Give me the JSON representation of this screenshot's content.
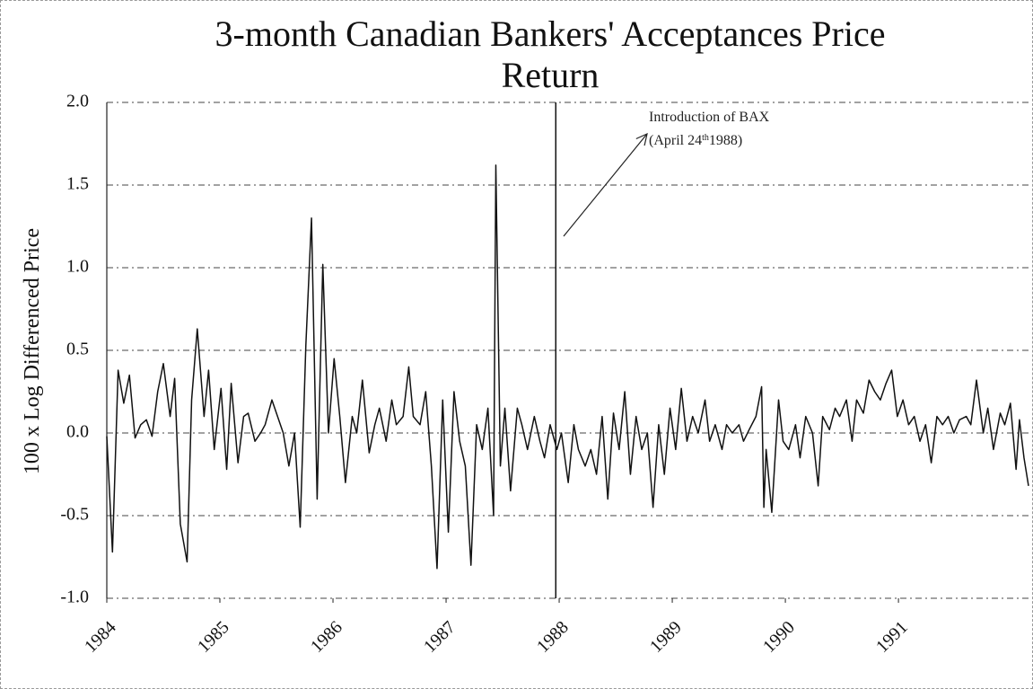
{
  "chart_data": {
    "type": "line",
    "title": "3-month Canadian Bankers' Acceptances Price Return",
    "y_label": "100 x Log Differenced Price",
    "xlim": [
      1984,
      1992.15
    ],
    "xticks": [
      1984,
      1985,
      1986,
      1987,
      1988,
      1989,
      1990,
      1991
    ],
    "ylim": [
      -1.0,
      2.0
    ],
    "yticks": [
      {
        "value": 2.0,
        "label": "2.0"
      },
      1.5,
      {
        "value": 1.0,
        "label": "1.0"
      },
      0.5,
      {
        "value": 0.0,
        "label": "0.0"
      },
      -0.5,
      {
        "value": -1.0,
        "label": "-1.0"
      }
    ],
    "grid": true,
    "annotation": {
      "text": "Introduction of BAX",
      "date_parts": [
        "(April 24",
        "th",
        "1988)"
      ],
      "x": 1987.97
    },
    "series": [
      {
        "name": "Price Return",
        "color": "#111111",
        "x": [
          1984.0,
          1984.05,
          1984.1,
          1984.15,
          1984.2,
          1984.25,
          1984.3,
          1984.35,
          1984.4,
          1984.45,
          1984.5,
          1984.56,
          1984.6,
          1984.65,
          1984.71,
          1984.75,
          1984.8,
          1984.86,
          1984.9,
          1984.95,
          1985.01,
          1985.06,
          1985.1,
          1985.16,
          1985.21,
          1985.25,
          1985.31,
          1985.36,
          1985.4,
          1985.46,
          1985.51,
          1985.56,
          1985.61,
          1985.66,
          1985.71,
          1985.76,
          1985.81,
          1985.86,
          1985.91,
          1985.96,
          1986.01,
          1986.06,
          1986.11,
          1986.17,
          1986.21,
          1986.26,
          1986.32,
          1986.37,
          1986.41,
          1986.47,
          1986.52,
          1986.56,
          1986.62,
          1986.67,
          1986.71,
          1986.77,
          1986.82,
          1986.87,
          1986.92,
          1986.97,
          1987.02,
          1987.07,
          1987.12,
          1987.17,
          1987.22,
          1987.27,
          1987.32,
          1987.37,
          1987.42,
          1987.44,
          1987.48,
          1987.52,
          1987.57,
          1987.63,
          1987.67,
          1987.72,
          1987.78,
          1987.83,
          1987.87,
          1987.92,
          1987.98,
          1988.02,
          1988.08,
          1988.13,
          1988.17,
          1988.23,
          1988.28,
          1988.33,
          1988.38,
          1988.43,
          1988.48,
          1988.53,
          1988.58,
          1988.63,
          1988.68,
          1988.73,
          1988.78,
          1988.83,
          1988.88,
          1988.93,
          1988.98,
          1989.03,
          1989.08,
          1989.13,
          1989.18,
          1989.23,
          1989.29,
          1989.33,
          1989.38,
          1989.44,
          1989.48,
          1989.53,
          1989.59,
          1989.63,
          1989.68,
          1989.74,
          1989.79,
          1989.81,
          1989.83,
          1989.88,
          1989.94,
          1989.98,
          1990.03,
          1990.09,
          1990.13,
          1990.18,
          1990.24,
          1990.29,
          1990.33,
          1990.39,
          1990.44,
          1990.48,
          1990.54,
          1990.59,
          1990.63,
          1990.69,
          1990.74,
          1990.79,
          1990.84,
          1990.89,
          1990.94,
          1990.99,
          1991.04,
          1991.09,
          1991.14,
          1991.19,
          1991.24,
          1991.29,
          1991.34,
          1991.39,
          1991.44,
          1991.49,
          1991.54,
          1991.6,
          1991.64,
          1991.69,
          1991.75,
          1991.79,
          1991.84,
          1991.9,
          1991.94,
          1991.99,
          1992.04,
          1992.07,
          1992.11,
          1992.15
        ],
        "values": [
          -0.02,
          -0.72,
          0.38,
          0.18,
          0.35,
          -0.03,
          0.05,
          0.08,
          -0.02,
          0.25,
          0.42,
          0.1,
          0.33,
          -0.55,
          -0.78,
          0.2,
          0.63,
          0.1,
          0.38,
          -0.1,
          0.27,
          -0.22,
          0.3,
          -0.18,
          0.1,
          0.12,
          -0.05,
          0.0,
          0.05,
          0.2,
          0.1,
          0.0,
          -0.2,
          0.0,
          -0.57,
          0.53,
          1.3,
          -0.4,
          1.02,
          0.0,
          0.45,
          0.1,
          -0.3,
          0.1,
          0.0,
          0.32,
          -0.12,
          0.05,
          0.15,
          -0.05,
          0.2,
          0.05,
          0.1,
          0.4,
          0.1,
          0.05,
          0.25,
          -0.2,
          -0.82,
          0.2,
          -0.6,
          0.25,
          -0.05,
          -0.2,
          -0.8,
          0.05,
          -0.1,
          0.15,
          -0.5,
          1.62,
          -0.2,
          0.15,
          -0.35,
          0.15,
          0.05,
          -0.1,
          0.1,
          -0.05,
          -0.15,
          0.05,
          -0.1,
          0.0,
          -0.3,
          0.05,
          -0.1,
          -0.2,
          -0.1,
          -0.25,
          0.1,
          -0.4,
          0.12,
          -0.1,
          0.25,
          -0.25,
          0.1,
          -0.1,
          0.0,
          -0.45,
          0.05,
          -0.25,
          0.15,
          -0.1,
          0.27,
          -0.05,
          0.1,
          0.0,
          0.2,
          -0.05,
          0.05,
          -0.1,
          0.05,
          0.0,
          0.05,
          -0.05,
          0.02,
          0.1,
          0.28,
          -0.45,
          -0.1,
          -0.48,
          0.2,
          -0.05,
          -0.1,
          0.05,
          -0.15,
          0.1,
          0.0,
          -0.32,
          0.1,
          0.02,
          0.15,
          0.1,
          0.2,
          -0.05,
          0.2,
          0.12,
          0.32,
          0.25,
          0.2,
          0.3,
          0.38,
          0.1,
          0.2,
          0.05,
          0.1,
          -0.05,
          0.05,
          -0.18,
          0.1,
          0.05,
          0.1,
          0.0,
          0.08,
          0.1,
          0.05,
          0.32,
          0.0,
          0.15,
          -0.1,
          0.12,
          0.05,
          0.18,
          -0.22,
          0.08,
          -0.15,
          -0.32
        ]
      }
    ]
  }
}
